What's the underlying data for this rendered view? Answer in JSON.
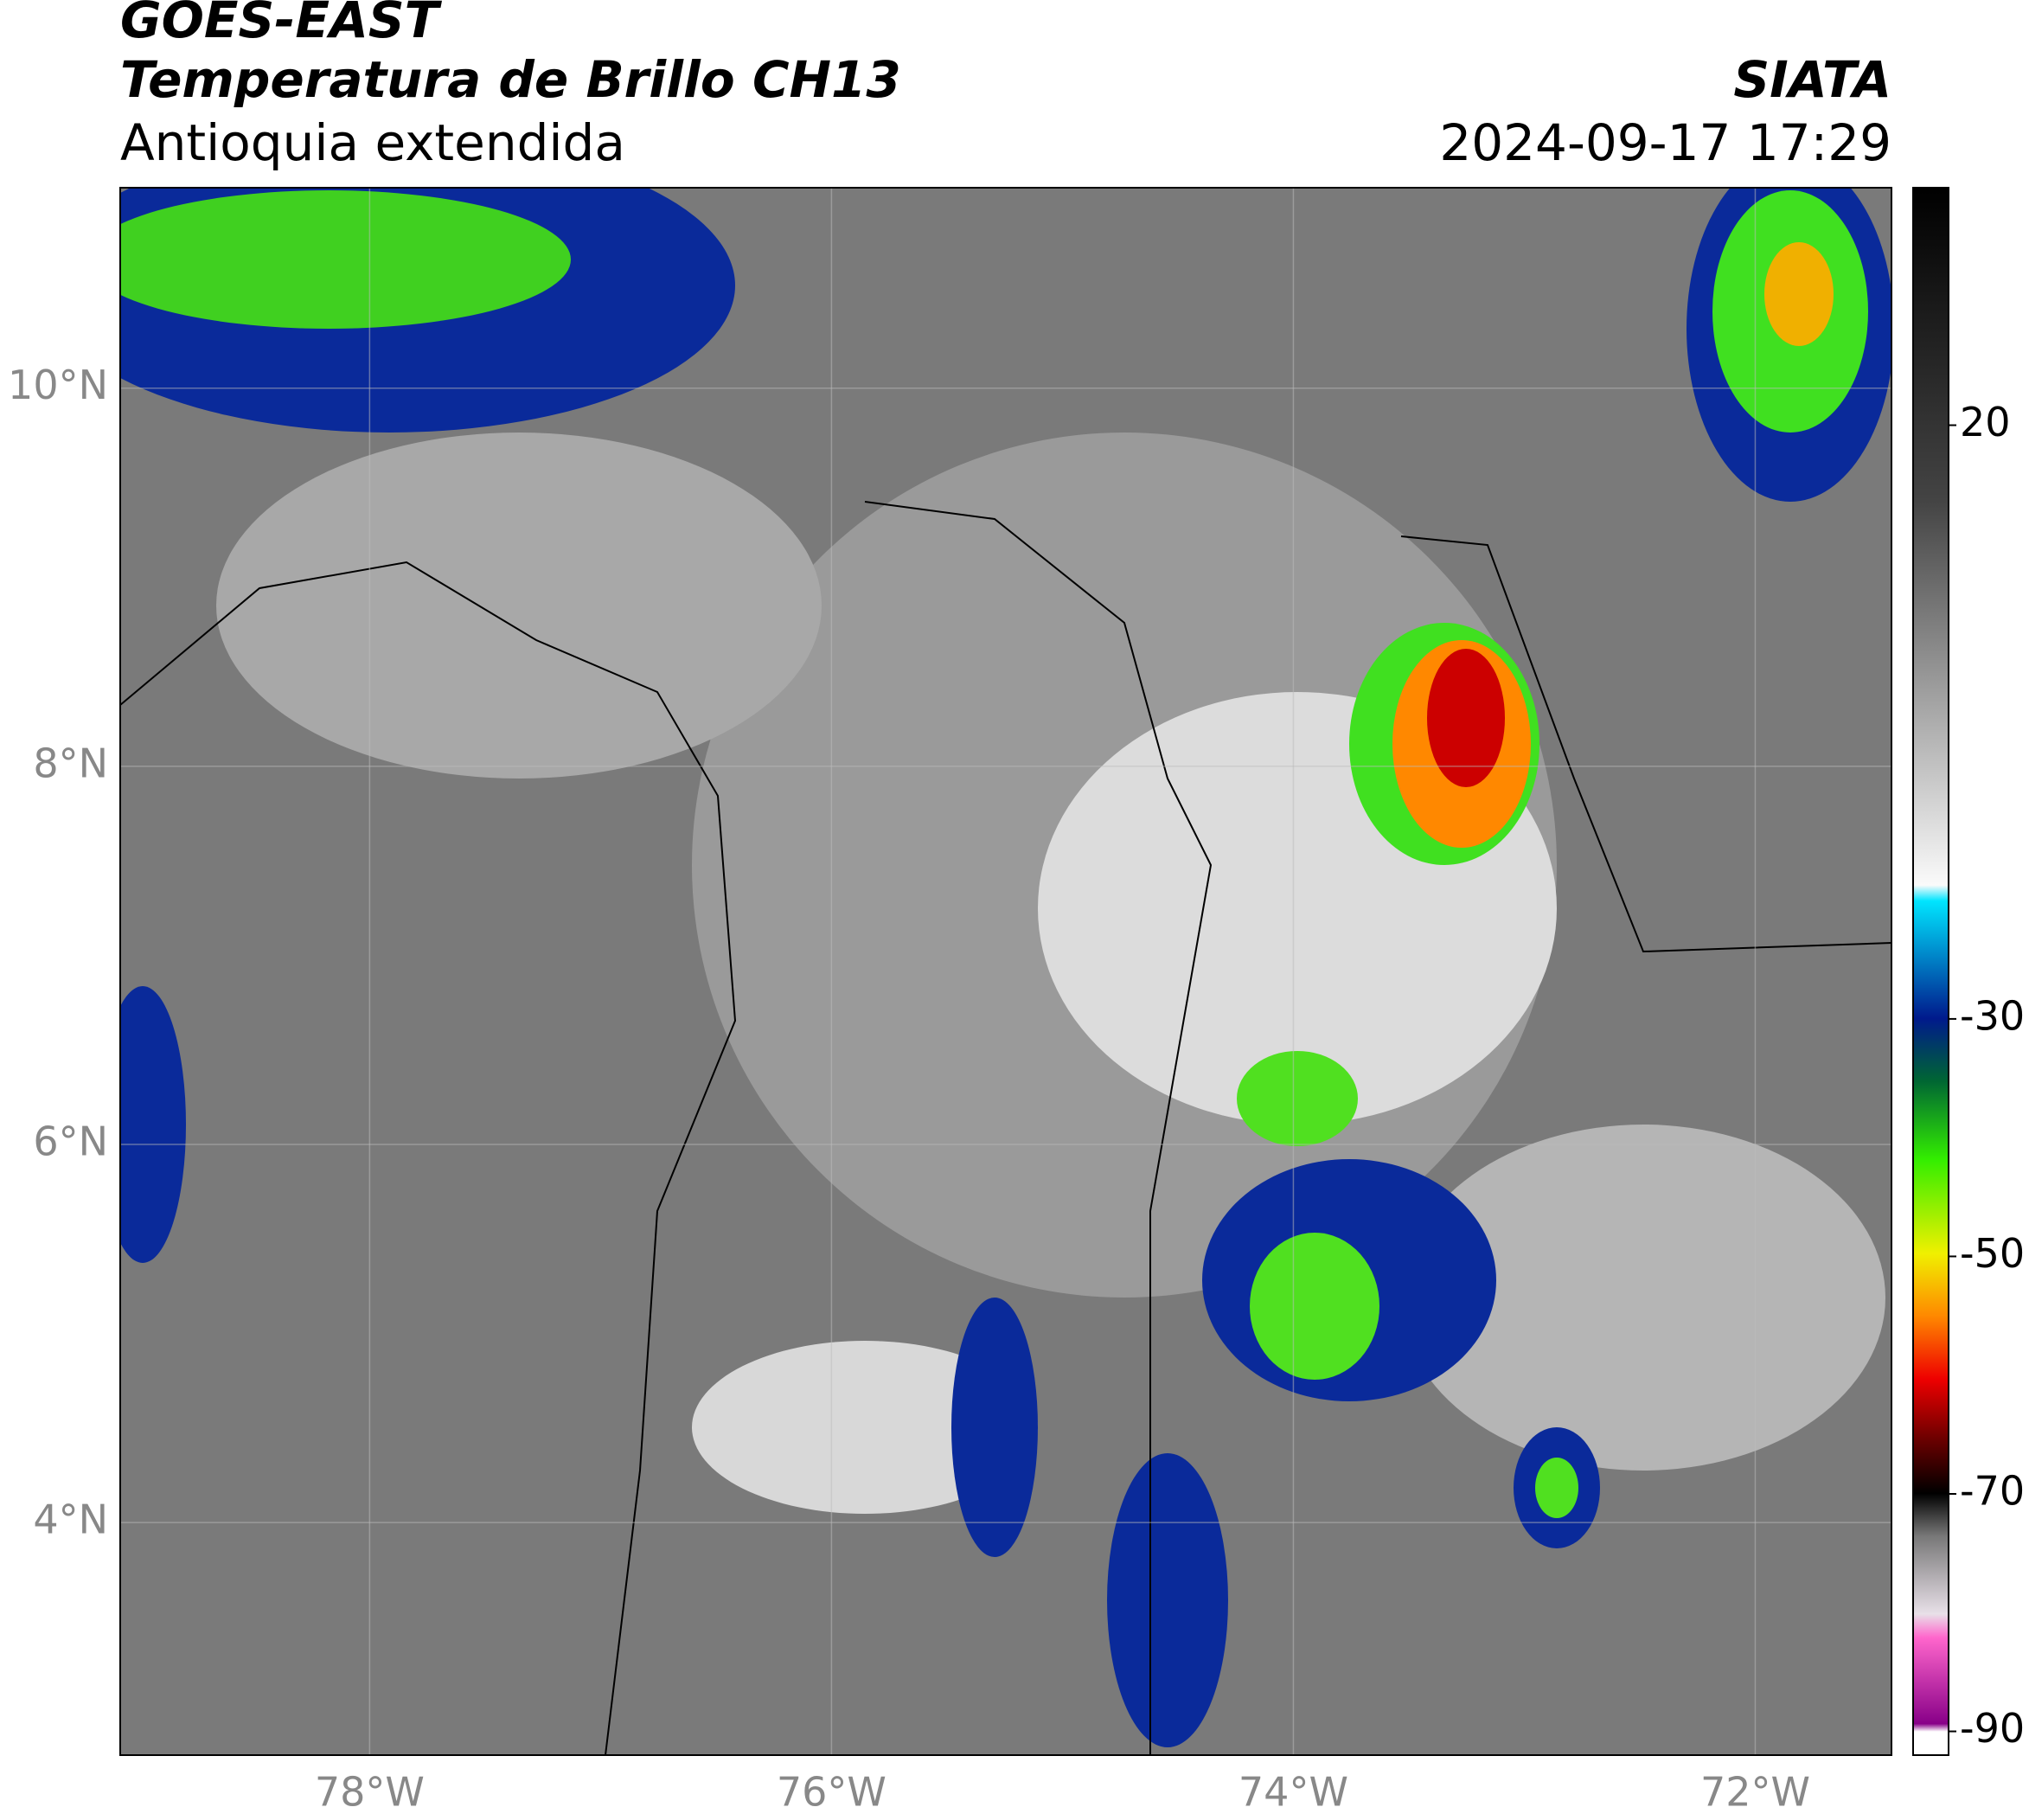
{
  "header": {
    "title_line1": "GOES-EAST",
    "title_line2": "Temperatura de Brillo CH13",
    "subtitle": "Antioquia extendida",
    "source": "SIATA",
    "datetime": "2024-09-17 17:29"
  },
  "map": {
    "xlim": [
      -79.08,
      -71.41
    ],
    "ylim": [
      2.77,
      11.06
    ],
    "xticks": [
      {
        "value": -78,
        "label": "78°W"
      },
      {
        "value": -76,
        "label": "76°W"
      },
      {
        "value": -74,
        "label": "74°W"
      },
      {
        "value": -72,
        "label": "72°W"
      }
    ],
    "yticks": [
      {
        "value": 4,
        "label": "4°N"
      },
      {
        "value": 6,
        "label": "6°N"
      },
      {
        "value": 8,
        "label": "8°N"
      },
      {
        "value": 10,
        "label": "10°N"
      }
    ],
    "grid": true
  },
  "colorbar": {
    "clim": [
      -92,
      40
    ],
    "ticks": [
      20,
      -30,
      -50,
      -70,
      -90
    ]
  }
}
